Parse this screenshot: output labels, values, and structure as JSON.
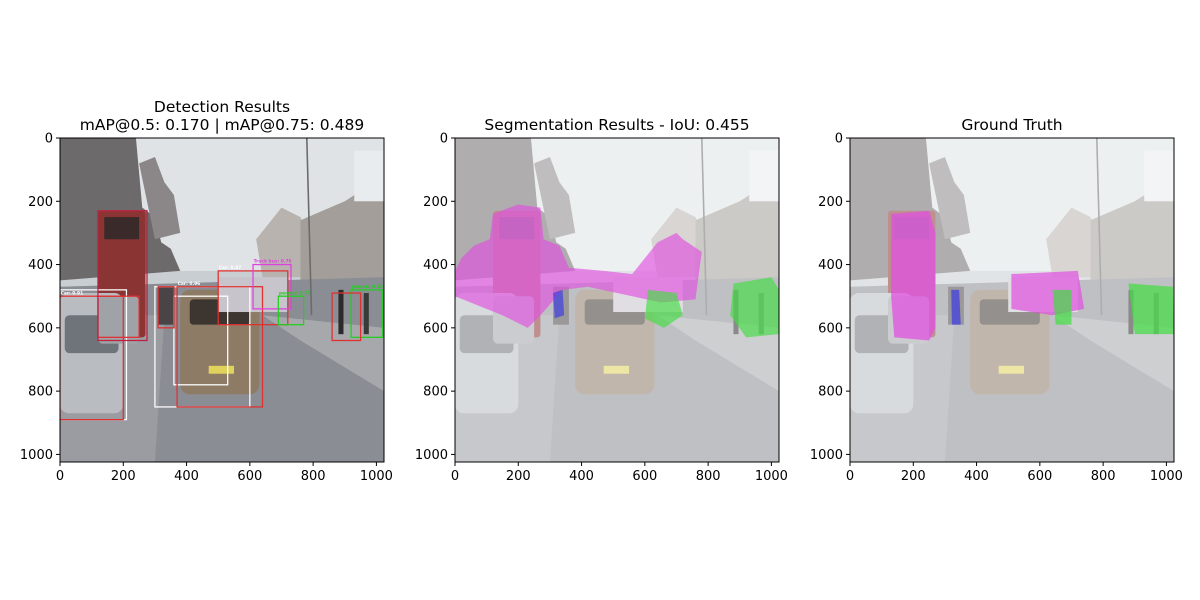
{
  "figure": {
    "panels": [
      {
        "id": "detection",
        "title_lines": [
          "Detection Results",
          "mAP@0.5: 0.170 | mAP@0.75: 0.489"
        ],
        "overlay": "boxes"
      },
      {
        "id": "segmentation",
        "title_lines": [
          "Segmentation Results - IoU: 0.455"
        ],
        "overlay": "pred_masks"
      },
      {
        "id": "ground_truth",
        "title_lines": [
          "Ground Truth"
        ],
        "overlay": "gt_masks"
      }
    ]
  },
  "chart_data": {
    "type": "image",
    "xlim": [
      0,
      1024
    ],
    "ylim": [
      1024,
      0
    ],
    "xticks": [
      0,
      200,
      400,
      600,
      800,
      1000
    ],
    "yticks": [
      0,
      200,
      400,
      600,
      800,
      1000
    ],
    "colors": {
      "car_box": "#e03030",
      "gt_box": "#ffffff",
      "bus_box": "#c02040",
      "truck_box": "#e040e0",
      "person_box": "#20d020",
      "bus_mask": "#e050e0",
      "person_mask": "#40dd40",
      "bicycle_mask": "#4040e0",
      "road": "#8a8d93",
      "sky": "#dfe3e6"
    },
    "detections": [
      {
        "label": "Car: 0.91",
        "color": "car_box",
        "x0": 0,
        "y0": 500,
        "x1": 200,
        "y1": 890
      },
      {
        "label": "",
        "color": "car_box",
        "x0": 120,
        "y0": 500,
        "x1": 250,
        "y1": 630
      },
      {
        "label": "",
        "color": "bus_box",
        "x0": 120,
        "y0": 230,
        "x1": 275,
        "y1": 640
      },
      {
        "label": "Car: 0.96",
        "color": "car_box",
        "x0": 370,
        "y0": 470,
        "x1": 640,
        "y1": 850
      },
      {
        "label": "Car: 0.87",
        "color": "car_box",
        "x0": 500,
        "y0": 420,
        "x1": 720,
        "y1": 590
      },
      {
        "label": "",
        "color": "car_box",
        "x0": 310,
        "y0": 470,
        "x1": 360,
        "y1": 600
      },
      {
        "label": "Truck bus: 0.76",
        "color": "truck_box",
        "x0": 610,
        "y0": 400,
        "x1": 730,
        "y1": 540
      },
      {
        "label": "person: 0.83",
        "color": "person_box",
        "x0": 920,
        "y0": 480,
        "x1": 1020,
        "y1": 630
      },
      {
        "label": "",
        "color": "car_box",
        "x0": 860,
        "y0": 490,
        "x1": 950,
        "y1": 640
      },
      {
        "label": "person: 0.72",
        "color": "person_box",
        "x0": 690,
        "y0": 500,
        "x1": 770,
        "y1": 590
      }
    ],
    "ground_truth_boxes": [
      {
        "label": "",
        "x0": 0,
        "y0": 480,
        "x1": 210,
        "y1": 890
      },
      {
        "label": "",
        "x0": 300,
        "y0": 470,
        "x1": 600,
        "y1": 850
      },
      {
        "label": "",
        "x0": 360,
        "y0": 500,
        "x1": 530,
        "y1": 780
      }
    ],
    "predicted_masks": [
      {
        "class": "bus",
        "color": "bus_mask",
        "opacity": 0.65,
        "points": [
          [
            20,
            380
          ],
          [
            60,
            340
          ],
          [
            110,
            320
          ],
          [
            120,
            240
          ],
          [
            200,
            210
          ],
          [
            270,
            220
          ],
          [
            280,
            320
          ],
          [
            330,
            340
          ],
          [
            360,
            410
          ],
          [
            470,
            420
          ],
          [
            560,
            430
          ],
          [
            640,
            330
          ],
          [
            700,
            300
          ],
          [
            720,
            320
          ],
          [
            780,
            360
          ],
          [
            760,
            510
          ],
          [
            650,
            520
          ],
          [
            560,
            500
          ],
          [
            420,
            470
          ],
          [
            340,
            480
          ],
          [
            270,
            560
          ],
          [
            230,
            600
          ],
          [
            150,
            560
          ],
          [
            0,
            500
          ],
          [
            0,
            420
          ]
        ]
      },
      {
        "class": "person",
        "color": "person_mask",
        "opacity": 0.65,
        "points": [
          [
            610,
            480
          ],
          [
            700,
            490
          ],
          [
            720,
            560
          ],
          [
            660,
            600
          ],
          [
            600,
            570
          ]
        ]
      },
      {
        "class": "person",
        "color": "person_mask",
        "opacity": 0.65,
        "points": [
          [
            880,
            460
          ],
          [
            1000,
            440
          ],
          [
            1024,
            480
          ],
          [
            1024,
            620
          ],
          [
            920,
            630
          ],
          [
            870,
            560
          ]
        ]
      },
      {
        "class": "bicycle",
        "color": "bicycle_mask",
        "opacity": 0.7,
        "points": [
          [
            310,
            490
          ],
          [
            340,
            480
          ],
          [
            345,
            560
          ],
          [
            315,
            570
          ]
        ]
      }
    ],
    "ground_truth_masks": [
      {
        "class": "bus",
        "color": "bus_mask",
        "opacity": 0.75,
        "points": [
          [
            130,
            240
          ],
          [
            250,
            230
          ],
          [
            270,
            300
          ],
          [
            270,
            600
          ],
          [
            250,
            640
          ],
          [
            140,
            630
          ],
          [
            130,
            500
          ]
        ]
      },
      {
        "class": "bus",
        "color": "bus_mask",
        "opacity": 0.7,
        "points": [
          [
            510,
            430
          ],
          [
            720,
            420
          ],
          [
            740,
            540
          ],
          [
            640,
            560
          ],
          [
            510,
            540
          ]
        ]
      },
      {
        "class": "person",
        "color": "person_mask",
        "opacity": 0.7,
        "points": [
          [
            640,
            480
          ],
          [
            700,
            480
          ],
          [
            700,
            590
          ],
          [
            650,
            590
          ]
        ]
      },
      {
        "class": "person",
        "color": "person_mask",
        "opacity": 0.7,
        "points": [
          [
            880,
            460
          ],
          [
            1020,
            470
          ],
          [
            1024,
            620
          ],
          [
            900,
            620
          ]
        ]
      },
      {
        "class": "bicycle",
        "color": "bicycle_mask",
        "opacity": 0.75,
        "points": [
          [
            320,
            480
          ],
          [
            345,
            480
          ],
          [
            350,
            590
          ],
          [
            322,
            590
          ]
        ]
      }
    ]
  }
}
